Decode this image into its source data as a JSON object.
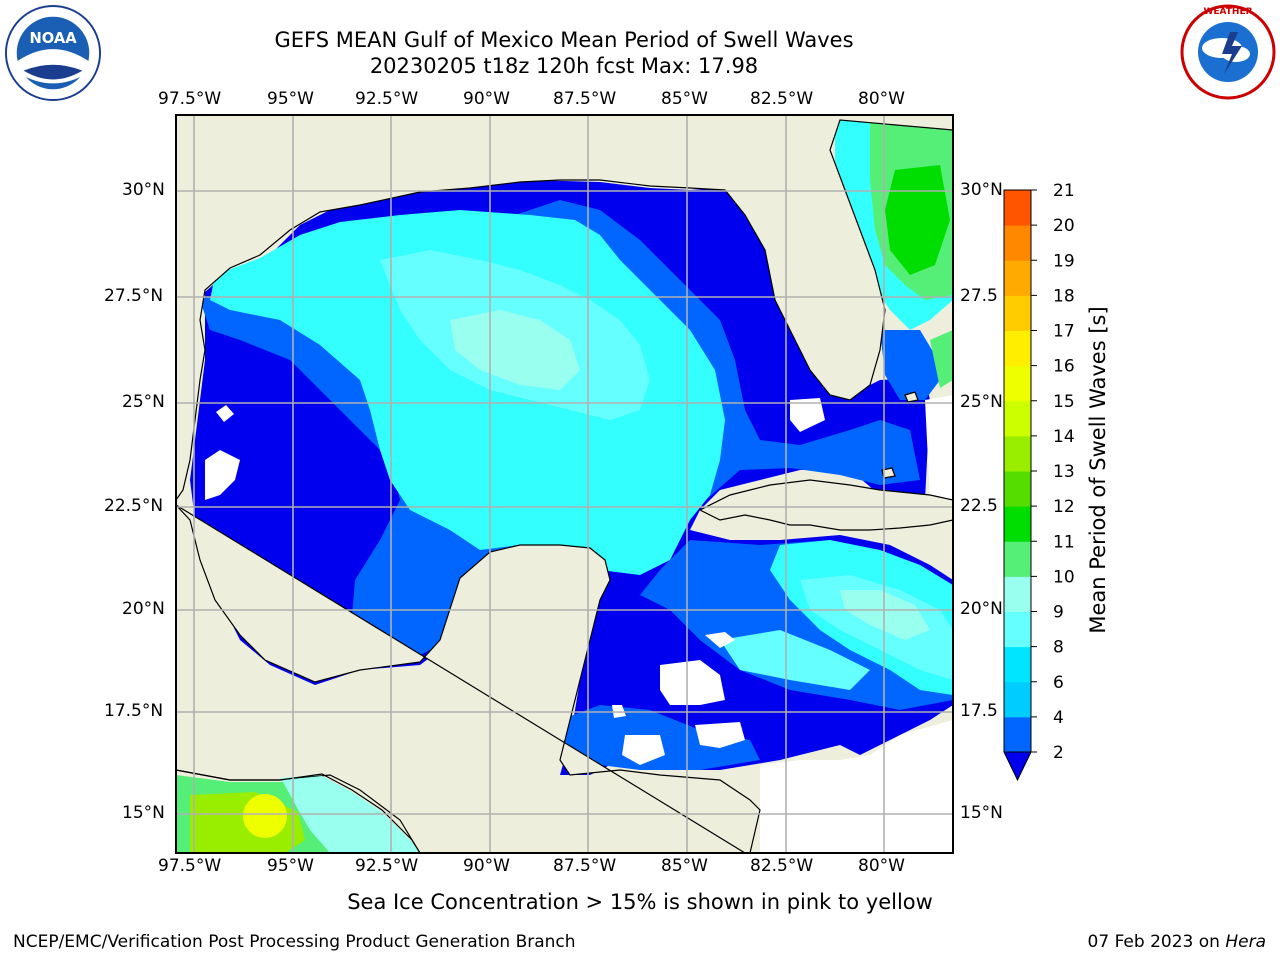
{
  "title_line1": "GEFS MEAN Gulf of Mexico Mean Period of Swell Waves",
  "title_line2": "20230205 t18z 120h fcst   Max: 17.98",
  "lon_labels": [
    "97.5°W",
    "95°W",
    "92.5°W",
    "90°W",
    "87.5°W",
    "85°W",
    "82.5°W",
    "80°W"
  ],
  "lat_labels_left": [
    "30°N",
    "27.5°N",
    "25°N",
    "22.5°N",
    "20°N",
    "17.5°N",
    "15°N"
  ],
  "lat_labels_right": [
    "30°N",
    "27.5",
    "25°N",
    "22.5",
    "20°N",
    "17.5",
    "15°N"
  ],
  "colorbar": {
    "label": "Mean Period of Swell Waves [s]",
    "ticks": [
      "2",
      "4",
      "6",
      "8",
      "9",
      "10",
      "11",
      "12",
      "13",
      "14",
      "15",
      "16",
      "17",
      "18",
      "19",
      "20",
      "21"
    ],
    "colors": [
      "#0066ff",
      "#00ccff",
      "#00e5ff",
      "#66ffff",
      "#99ffee",
      "#55ee77",
      "#00dd00",
      "#55dd00",
      "#99ee00",
      "#ccff00",
      "#eeff00",
      "#ffee00",
      "#ffcc00",
      "#ffaa00",
      "#ff8800",
      "#ff5500",
      "#ff2200",
      "#ff0000"
    ],
    "under_color": "#0000ee"
  },
  "map_colors": {
    "land": "#eeeedd",
    "deep_blue": "#0000ee",
    "blue": "#0066ff",
    "cyan": "#00ffff",
    "light_cyan": "#66ffff",
    "pale_cyan": "#99ffee",
    "green_light": "#55ee77",
    "green": "#00dd00",
    "yellow_green": "#99ee00",
    "yellow": "#eeff00"
  },
  "subtitle": "Sea Ice Concentration > 15% is shown in pink to yellow",
  "footer_left": "NCEP/EMC/Verification Post Processing Product Generation Branch",
  "footer_right_date": "07 Feb 2023 on ",
  "footer_right_host": "Hera",
  "logos": {
    "left": "noaa-logo",
    "right": "nws-logo"
  }
}
